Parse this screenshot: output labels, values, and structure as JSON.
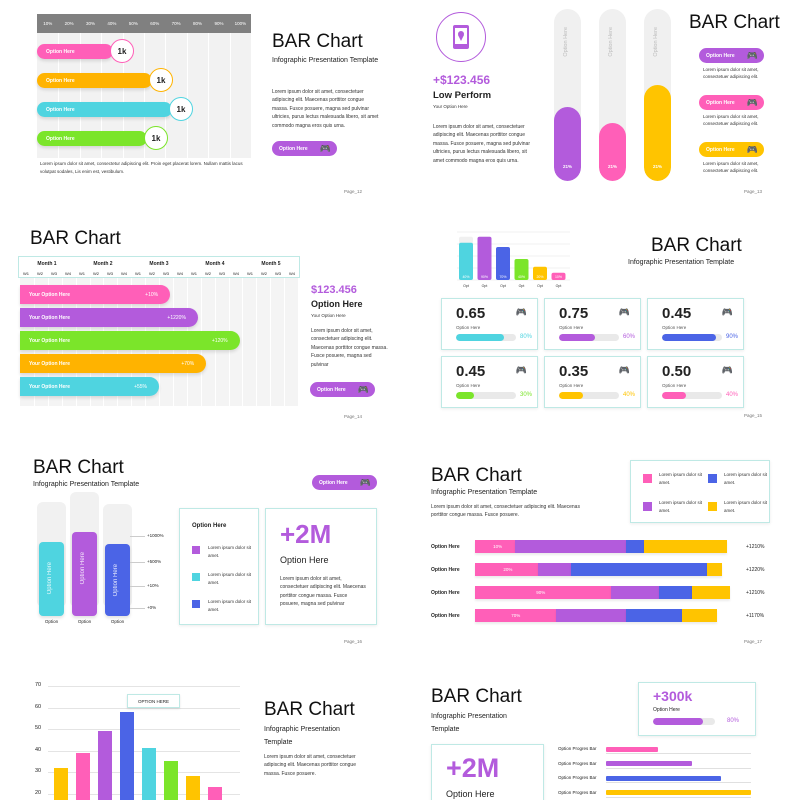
{
  "colors": {
    "pink": "#ff5fb8",
    "orange": "#ffb300",
    "cyan": "#4fd4e0",
    "green": "#7be52a",
    "violet": "#b35bdc",
    "blue": "#4b64e6",
    "yellow": "#ffc400",
    "teal": "#bfe9e5"
  },
  "slide1": {
    "ticks": [
      "10%",
      "20%",
      "30%",
      "40%",
      "50%",
      "60%",
      "70%",
      "80%",
      "90%",
      "100%"
    ],
    "bars": [
      {
        "label": "Option Here",
        "value": "1k",
        "color": "#ff5fb8"
      },
      {
        "label": "Option Here",
        "value": "1k",
        "color": "#ffb300"
      },
      {
        "label": "Option Here",
        "value": "1k",
        "color": "#4fd4e0"
      },
      {
        "label": "Option Here",
        "value": "1k",
        "color": "#7be52a"
      }
    ],
    "footer": "Lorem ipsum dolor sit amet, consectetur adipiscing elit. Proin eget placerat lorem. Nullam mattis lacus volutpat sodales, Lis enim est, vestibulum.",
    "title": "BAR Chart",
    "subtitle": "Infographic Presentation Template",
    "body": "Lorem ipsum dolor sit amet, consectetuer adipiscing elit. Maecenas porttitor congue massa. Fusce posuere, magna sed pulvinar ultricies, purus lectus malesuada libero, sit amet commodo magna eros quis urna.",
    "button": "Option Here",
    "page": "Page_12"
  },
  "slide2": {
    "amount": "+$123.456",
    "heading": "Low Perform",
    "option": "Your Option Here",
    "body": "Lorem ipsum dolor sit amet, consectetuer adipiscing elit. Maecenas porttitor congue massa. Fusce posuere, magna sed pulvinar ultricies, purus lectus malesuada libero, sit amet commodo magna eros quis urna.",
    "bars": [
      {
        "label": "Option Here",
        "value": "21%",
        "color": "#b35bdc",
        "fill": 0.43
      },
      {
        "label": "Option Here",
        "value": "21%",
        "color": "#ff5fb8",
        "fill": 0.34
      },
      {
        "label": "Option Here",
        "value": "21%",
        "color": "#ffc400",
        "fill": 0.56
      }
    ],
    "title": "BAR Chart",
    "options": [
      {
        "label": "Option Here",
        "color": "#b35bdc",
        "text": "Lorem ipsum dolor sit amet, consectetuer adipiscing elit."
      },
      {
        "label": "Option Here",
        "color": "#ff5fb8",
        "text": "Lorem ipsum dolor sit amet, consectetuer adipiscing elit."
      },
      {
        "label": "Option Here",
        "color": "#ffc400",
        "text": "Lorem ipsum dolor sit amet, consectetuer adipiscing elit."
      }
    ],
    "page": "Page_13"
  },
  "slide3": {
    "title": "BAR Chart",
    "months": [
      "Month 1",
      "Month 2",
      "Month 3",
      "Month 4",
      "Month 5"
    ],
    "weeks": [
      "W1",
      "W2",
      "W3",
      "W4",
      "W1",
      "W2",
      "W3",
      "W4",
      "W1",
      "W2",
      "W3",
      "W4",
      "W1",
      "W2",
      "W3",
      "W4",
      "W1",
      "W2",
      "W3",
      "W4"
    ],
    "bars": [
      {
        "label": "Your Option Here",
        "value": "+10%",
        "color": "#ff5fb8",
        "fill": 0.54
      },
      {
        "label": "Your Option Here",
        "value": "+1220%",
        "color": "#b35bdc",
        "fill": 0.64
      },
      {
        "label": "Your Option Here",
        "value": "+120%",
        "color": "#7be52a",
        "fill": 0.79
      },
      {
        "label": "Your Option Here",
        "value": "+70%",
        "color": "#ffb300",
        "fill": 0.67
      },
      {
        "label": "Your Option Here",
        "value": "+55%",
        "color": "#4fd4e0",
        "fill": 0.5
      }
    ],
    "amount": "$123.456",
    "heading": "Option Here",
    "option": "Your Option Here",
    "body": "Lorem ipsum dolor sit amet, consectetuer adipiscing elit. Maecenas porttitor congue massa. Fusce posuere, magna sed pulvinar",
    "button": "Option Here",
    "page": "Page_14"
  },
  "slide4": {
    "bars": [
      {
        "label": "40%",
        "value": 0.62,
        "color": "#4fd4e0"
      },
      {
        "label": "90%",
        "value": 0.72,
        "color": "#b35bdc"
      },
      {
        "label": "70%",
        "value": 0.55,
        "color": "#4b64e6"
      },
      {
        "label": "40%",
        "value": 0.35,
        "color": "#7be52a"
      },
      {
        "label": "20%",
        "value": 0.22,
        "color": "#ffc400"
      },
      {
        "label": "10%",
        "value": 0.12,
        "color": "#ff5fb8"
      }
    ],
    "xlabels": [
      "Opt",
      "Opt",
      "Opt",
      "Opt",
      "Opt",
      "Opt"
    ],
    "title": "BAR Chart",
    "subtitle": "Infographic Presentation Template",
    "cards": [
      {
        "value": "0.65",
        "label": "Option Here",
        "pct": "80%",
        "fill": 0.8,
        "color": "#4fd4e0"
      },
      {
        "value": "0.75",
        "label": "Option Here",
        "pct": "60%",
        "fill": 0.6,
        "color": "#b35bdc"
      },
      {
        "value": "0.45",
        "label": "Option Here",
        "pct": "90%",
        "fill": 0.9,
        "color": "#4b64e6"
      },
      {
        "value": "0.45",
        "label": "Option Here",
        "pct": "30%",
        "fill": 0.3,
        "color": "#7be52a"
      },
      {
        "value": "0.35",
        "label": "Option Here",
        "pct": "40%",
        "fill": 0.4,
        "color": "#ffc400"
      },
      {
        "value": "0.50",
        "label": "Option Here",
        "pct": "40%",
        "fill": 0.4,
        "color": "#ff5fb8"
      }
    ],
    "page": "Page_15"
  },
  "slide5": {
    "title": "BAR Chart",
    "subtitle": "Infographic Presentation Template",
    "button": "Option Here",
    "bars": [
      {
        "label": "Option Here",
        "x": "Option",
        "color": "#4fd4e0",
        "fill": 0.82
      },
      {
        "label": "Option Here",
        "x": "Option",
        "color": "#b35bdc",
        "fill": 0.78
      },
      {
        "label": "Option Here",
        "x": "Option",
        "color": "#4b64e6",
        "fill": 0.85
      }
    ],
    "yticks": [
      "+1000%",
      "+500%",
      "+10%",
      "+0%"
    ],
    "legend_title": "Option Here",
    "legend": [
      {
        "text": "Lorem ipsum dolor sit amet.",
        "color": "#b35bdc"
      },
      {
        "text": "Lorem ipsum dolor sit amet.",
        "color": "#4fd4e0"
      },
      {
        "text": "Lorem ipsum dolor sit amet.",
        "color": "#4b64e6"
      }
    ],
    "big": "+2M",
    "big_label": "Option Here",
    "body": "Lorem ipsum dolor sit amet, consectetuer adipiscing elit. Maecenas porttitor congue massa. Fusce posuere, magna sed pulvinar",
    "page": "Page_16"
  },
  "slide6": {
    "title": "BAR Chart",
    "subtitle": "Infographic Presentation Template",
    "body": "Lorem ipsum dolor sit amet, consectetuer adipiscing elit. Maecenas porttitor congue massa. Fusce posuere.",
    "legend": [
      {
        "text": "Lorem ipsum dolor sit amet.",
        "color": "#ff5fb8"
      },
      {
        "text": "Lorem ipsum dolor sit amet.",
        "color": "#4b64e6"
      },
      {
        "text": "Lorem ipsum dolor sit amet.",
        "color": "#b35bdc"
      },
      {
        "text": "Lorem ipsum dolor sit amet.",
        "color": "#ffc400"
      }
    ],
    "rows": [
      {
        "label": "Option Here",
        "tag": "10%",
        "value": "+1210%",
        "segs": [
          0.16,
          0.44,
          0.07,
          0.33
        ]
      },
      {
        "label": "Option Here",
        "tag": "20%",
        "value": "+1220%",
        "segs": [
          0.25,
          0.13,
          0.54,
          0.06
        ]
      },
      {
        "label": "Option Here",
        "tag": "90%",
        "value": "+1210%",
        "segs": [
          0.54,
          0.19,
          0.13,
          0.15
        ]
      },
      {
        "label": "Option Here",
        "tag": "70%",
        "value": "+1170%",
        "segs": [
          0.32,
          0.28,
          0.22,
          0.14
        ]
      }
    ],
    "page": "Page_17"
  },
  "slide7": {
    "yticks": [
      "70",
      "60",
      "50",
      "40",
      "30",
      "20"
    ],
    "tooltip": "OPTION HERE",
    "bars": [
      {
        "value": 32,
        "color": "#ffc400"
      },
      {
        "value": 39,
        "color": "#ff5fb8"
      },
      {
        "value": 49,
        "color": "#b35bdc"
      },
      {
        "value": 58,
        "color": "#4b64e6"
      },
      {
        "value": 41,
        "color": "#4fd4e0"
      },
      {
        "value": 35,
        "color": "#7be52a"
      },
      {
        "value": 28,
        "color": "#ffc400"
      },
      {
        "value": 23,
        "color": "#ff5fb8"
      }
    ],
    "title": "BAR Chart",
    "subtitle": "Infographic Presentation Template",
    "body": "Lorem ipsum dolor sit amet, consectetuer adipiscing elit. Maecenas porttitor congue massa. Fusce posuere."
  },
  "slide8": {
    "title": "BAR Chart",
    "subtitle": "Infographic Presentation Template",
    "big": "+2M",
    "big_label": "Option Here",
    "stat": "+300k",
    "stat_label": "Option Here",
    "stat_pct": "80%",
    "stat_fill": 0.8,
    "rows": [
      {
        "label": "Option Progres Bar",
        "fill": 0.36,
        "color": "#ff5fb8"
      },
      {
        "label": "Option Progres Bar",
        "fill": 0.59,
        "color": "#b35bdc"
      },
      {
        "label": "Option Progres Bar",
        "fill": 0.79,
        "color": "#4b64e6"
      },
      {
        "label": "Option Progres Bar",
        "fill": 1.0,
        "color": "#ffc400"
      }
    ]
  }
}
